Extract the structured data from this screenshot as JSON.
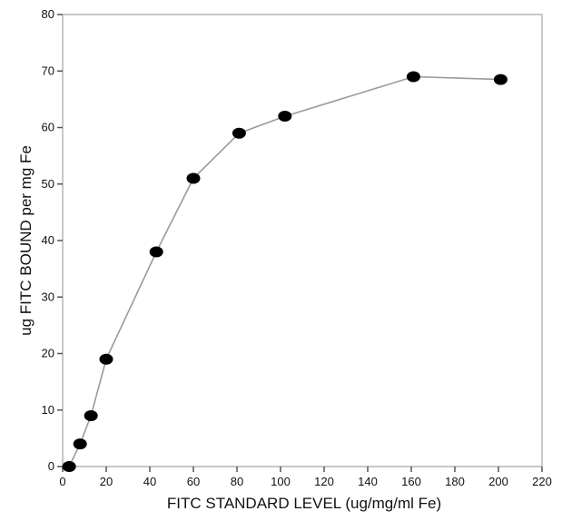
{
  "chart_data": {
    "type": "line",
    "title": "",
    "xlabel": "FITC STANDARD LEVEL (ug/mg/ml Fe)",
    "ylabel": "ug FITC BOUND per mg Fe",
    "xlim": [
      0,
      220
    ],
    "ylim": [
      0,
      80
    ],
    "x_ticks": [
      0,
      20,
      40,
      60,
      80,
      100,
      120,
      140,
      160,
      180,
      200,
      220
    ],
    "y_ticks": [
      0,
      10,
      20,
      30,
      40,
      50,
      60,
      70,
      80
    ],
    "grid": false,
    "series": [
      {
        "x": [
          3,
          8,
          13,
          20,
          43,
          60,
          81,
          102,
          161,
          201
        ],
        "y": [
          0,
          4,
          9,
          19,
          38,
          51,
          59,
          62,
          69,
          68.5
        ]
      }
    ],
    "line_color": "#9a9a9a",
    "marker_color": "#000000"
  }
}
